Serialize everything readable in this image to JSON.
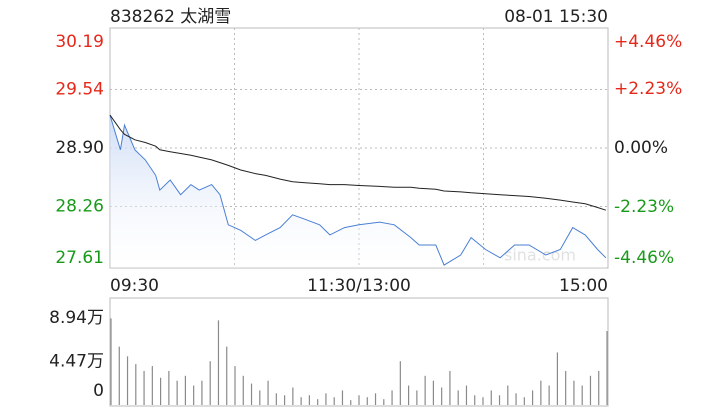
{
  "chart_data": [
    {
      "type": "line",
      "title": "838262 太湖雪",
      "subtitle": "08-01 15:30",
      "watermark": "sina.com",
      "x": [
        0,
        5,
        7,
        12,
        17,
        22,
        24,
        29,
        34,
        39,
        43,
        49,
        53,
        57,
        63,
        70,
        75,
        82,
        88,
        94,
        101,
        106,
        113,
        120,
        130,
        137,
        145,
        149,
        157,
        161,
        169,
        174,
        181,
        188,
        195,
        202,
        210,
        217,
        223,
        229,
        235,
        239
      ],
      "xlim": [
        0,
        240
      ],
      "xticks": [
        {
          "value": 0,
          "label": "09:30"
        },
        {
          "value": 120,
          "label": "11:30/13:00"
        },
        {
          "value": 240,
          "label": "15:00"
        }
      ],
      "xgrid": [
        60,
        120,
        180
      ],
      "ylim": [
        27.61,
        30.19
      ],
      "yticks": [
        30.19,
        29.54,
        {
          "value": 28.9,
          "label": "28.90"
        },
        28.26,
        27.61
      ],
      "y2lim": [
        -4.46,
        4.46
      ],
      "y2ticks": [
        {
          "value": 4.46,
          "label": "+4.46%"
        },
        {
          "value": 2.23,
          "label": "+2.23%"
        },
        {
          "value": 0,
          "label": "0.00%"
        },
        {
          "value": -2.23,
          "label": "-2.23%"
        },
        {
          "value": -4.46,
          "label": "-4.46%"
        }
      ],
      "grid": true,
      "series": [
        {
          "color": "#4a7fd4",
          "area": true,
          "values": [
            29.26,
            28.88,
            29.15,
            28.88,
            28.77,
            28.6,
            28.44,
            28.55,
            28.39,
            28.5,
            28.44,
            28.5,
            28.39,
            28.06,
            28.0,
            27.89,
            27.95,
            28.03,
            28.17,
            28.12,
            28.06,
            27.95,
            28.03,
            28.06,
            28.09,
            28.06,
            27.92,
            27.84,
            27.84,
            27.62,
            27.73,
            27.92,
            27.79,
            27.7,
            27.84,
            27.84,
            27.73,
            27.79,
            28.03,
            27.95,
            27.79,
            27.7
          ]
        },
        {
          "color": "#222222",
          "area": false,
          "values": [
            29.26,
            29.1,
            29.05,
            28.99,
            28.96,
            28.92,
            28.88,
            28.86,
            28.84,
            28.82,
            28.8,
            28.77,
            28.74,
            28.71,
            28.66,
            28.62,
            28.6,
            28.56,
            28.53,
            28.52,
            28.51,
            28.5,
            28.5,
            28.49,
            28.48,
            28.47,
            28.47,
            28.46,
            28.45,
            28.43,
            28.42,
            28.41,
            28.4,
            28.39,
            28.38,
            28.37,
            28.35,
            28.33,
            28.31,
            28.29,
            28.25,
            28.22
          ]
        }
      ]
    },
    {
      "type": "bar",
      "color": "#8a8a8a",
      "grid": false,
      "x": [
        0,
        4,
        8,
        12,
        16,
        20,
        24,
        28,
        32,
        36,
        40,
        44,
        48,
        52,
        56,
        60,
        64,
        68,
        72,
        76,
        80,
        84,
        88,
        92,
        96,
        100,
        104,
        108,
        112,
        116,
        120,
        124,
        128,
        132,
        136,
        140,
        144,
        148,
        152,
        156,
        160,
        164,
        168,
        172,
        176,
        180,
        184,
        188,
        192,
        196,
        200,
        204,
        208,
        212,
        216,
        220,
        224,
        228,
        232,
        236,
        240
      ],
      "xlim": [
        0,
        240
      ],
      "values": [
        8.9,
        6.0,
        5.0,
        4.2,
        3.5,
        4.0,
        2.8,
        3.5,
        2.5,
        3.0,
        2.0,
        2.5,
        4.5,
        8.7,
        6.0,
        4.0,
        3.0,
        2.2,
        1.5,
        2.5,
        1.2,
        1.0,
        1.8,
        0.8,
        1.0,
        0.6,
        1.2,
        0.8,
        1.5,
        0.5,
        1.0,
        0.8,
        1.2,
        0.6,
        1.5,
        4.5,
        2.0,
        1.5,
        3.0,
        2.5,
        1.8,
        3.5,
        1.5,
        2.0,
        1.0,
        0.8,
        1.5,
        1.0,
        2.0,
        1.2,
        0.8,
        1.5,
        2.5,
        2.0,
        5.4,
        3.5,
        2.5,
        2.0,
        3.0,
        3.5,
        7.6
      ],
      "ylim": [
        0,
        8.94
      ],
      "yticks": [
        0,
        {
          "value": 4.47,
          "label": "4.47万"
        },
        {
          "value": 8.94,
          "label": "8.94万"
        }
      ]
    }
  ]
}
